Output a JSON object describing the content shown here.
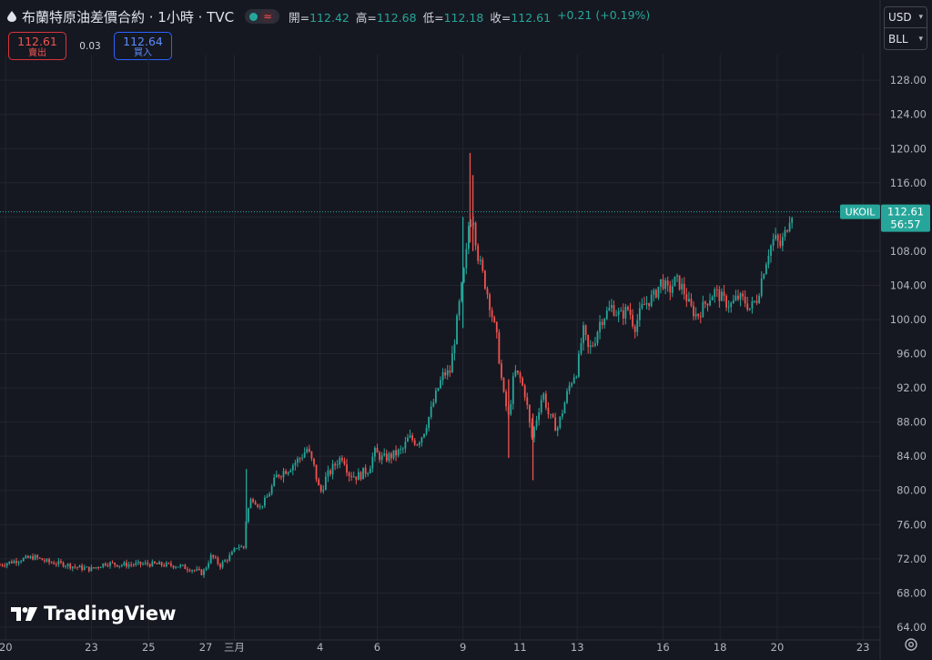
{
  "header": {
    "symbol_title": "布蘭特原油差價合約 · 1小時 · TVC",
    "status_icon": "market-open-dot",
    "wave_icon": "≈",
    "ohlc": [
      {
        "key": "開=",
        "value": "112.42"
      },
      {
        "key": "高=",
        "value": "112.68"
      },
      {
        "key": "低=",
        "value": "112.18"
      },
      {
        "key": "收=",
        "value": "112.61"
      }
    ],
    "change": "+0.21 (+0.19%)"
  },
  "trade": {
    "sell_price": "112.61",
    "sell_label": "賣出",
    "spread": "0.03",
    "buy_price": "112.64",
    "buy_label": "買入"
  },
  "units": {
    "currency": "USD",
    "unit": "BLL"
  },
  "price_tag": {
    "symbol": "UKOIL",
    "price": "112.61",
    "countdown": "56:57"
  },
  "logo_text": "TradingView",
  "colors": {
    "up": "#26a69a",
    "down": "#ef5350",
    "background": "#161821",
    "grid": "#22252f",
    "axis_text": "#b2b5be"
  },
  "chart_data": {
    "type": "candlestick",
    "y_ticks": [
      "64.00",
      "68.00",
      "72.00",
      "76.00",
      "80.00",
      "84.00",
      "88.00",
      "92.00",
      "96.00",
      "100.00",
      "104.00",
      "108.00",
      "112.00",
      "116.00",
      "120.00",
      "124.00",
      "128.00"
    ],
    "ylim": [
      62.5,
      131
    ],
    "x_ticks": [
      {
        "label": "20",
        "day": 0
      },
      {
        "label": "23",
        "day": 3
      },
      {
        "label": "25",
        "day": 5
      },
      {
        "label": "27",
        "day": 7
      },
      {
        "label": "三月",
        "day": 8
      },
      {
        "label": "4",
        "day": 11
      },
      {
        "label": "6",
        "day": 13
      },
      {
        "label": "9",
        "day": 16
      },
      {
        "label": "11",
        "day": 18
      },
      {
        "label": "13",
        "day": 20
      },
      {
        "label": "16",
        "day": 23
      },
      {
        "label": "18",
        "day": 25
      },
      {
        "label": "20",
        "day": 27
      },
      {
        "label": "23",
        "day": 30
      }
    ],
    "xlim": [
      -0.2,
      30.6
    ],
    "last_price": 112.61,
    "anchors": [
      [
        -0.2,
        71.3
      ],
      [
        0.5,
        71.9
      ],
      [
        1.0,
        72.2
      ],
      [
        1.5,
        71.6
      ],
      [
        2.0,
        71.4
      ],
      [
        2.5,
        71.0
      ],
      [
        3.0,
        70.8
      ],
      [
        3.5,
        71.5
      ],
      [
        4.0,
        71.3
      ],
      [
        5.0,
        71.4
      ],
      [
        6.0,
        71.2
      ],
      [
        6.5,
        70.8
      ],
      [
        6.9,
        70.3
      ],
      [
        7.2,
        72.4
      ],
      [
        7.5,
        71.2
      ],
      [
        7.9,
        72.5
      ],
      [
        8.1,
        73.5
      ],
      [
        8.35,
        73.3
      ],
      [
        8.42,
        77.0
      ],
      [
        8.6,
        79.2
      ],
      [
        8.9,
        78.0
      ],
      [
        9.2,
        79.5
      ],
      [
        9.5,
        81.8
      ],
      [
        9.9,
        82.6
      ],
      [
        10.3,
        83.8
      ],
      [
        10.55,
        84.9
      ],
      [
        10.8,
        82.6
      ],
      [
        11.0,
        79.6
      ],
      [
        11.2,
        81.4
      ],
      [
        11.6,
        83.4
      ],
      [
        11.8,
        84.1
      ],
      [
        12.0,
        82.0
      ],
      [
        12.3,
        81.6
      ],
      [
        12.7,
        82.5
      ],
      [
        12.9,
        84.5
      ],
      [
        13.2,
        83.7
      ],
      [
        13.6,
        84.2
      ],
      [
        13.9,
        84.8
      ],
      [
        14.1,
        86.2
      ],
      [
        14.4,
        85.6
      ],
      [
        14.6,
        86.6
      ],
      [
        14.85,
        89.0
      ],
      [
        15.1,
        91.7
      ],
      [
        15.3,
        93.5
      ],
      [
        15.55,
        93.9
      ],
      [
        15.95,
        103.6
      ],
      [
        16.1,
        107.0
      ],
      [
        16.2,
        111.0
      ],
      [
        16.35,
        112.3
      ],
      [
        16.5,
        107.8
      ],
      [
        16.7,
        105.2
      ],
      [
        16.9,
        102.5
      ],
      [
        17.05,
        100.0
      ],
      [
        17.2,
        97.5
      ],
      [
        17.4,
        91.5
      ],
      [
        17.6,
        88.5
      ],
      [
        17.8,
        94.0
      ],
      [
        18.0,
        93.1
      ],
      [
        18.2,
        91.0
      ],
      [
        18.4,
        86.0
      ],
      [
        18.6,
        88.8
      ],
      [
        18.8,
        91.5
      ],
      [
        19.0,
        88.8
      ],
      [
        19.3,
        87.2
      ],
      [
        19.5,
        89.5
      ],
      [
        19.7,
        92.0
      ],
      [
        19.9,
        93.6
      ],
      [
        20.0,
        94.0
      ],
      [
        20.2,
        98.8
      ],
      [
        20.4,
        96.3
      ],
      [
        20.6,
        97.5
      ],
      [
        20.8,
        99.8
      ],
      [
        21.2,
        101.5
      ],
      [
        21.5,
        100.4
      ],
      [
        21.8,
        101.3
      ],
      [
        22.0,
        99.1
      ],
      [
        22.3,
        101.6
      ],
      [
        22.7,
        102.8
      ],
      [
        22.95,
        104.6
      ],
      [
        23.2,
        103.2
      ],
      [
        23.45,
        104.7
      ],
      [
        23.7,
        103.6
      ],
      [
        23.95,
        101.4
      ],
      [
        24.2,
        100.4
      ],
      [
        24.5,
        102.0
      ],
      [
        24.8,
        103.3
      ],
      [
        25.0,
        102.7
      ],
      [
        25.2,
        102.0
      ],
      [
        25.4,
        101.7
      ],
      [
        25.6,
        102.6
      ],
      [
        25.85,
        102.2
      ],
      [
        26.05,
        101.3
      ],
      [
        26.3,
        102.5
      ],
      [
        26.5,
        105.5
      ],
      [
        26.7,
        108.0
      ],
      [
        26.9,
        109.6
      ],
      [
        27.1,
        108.6
      ],
      [
        27.3,
        110.3
      ],
      [
        27.45,
        112.2
      ],
      [
        27.55,
        112.61
      ]
    ],
    "spikes": [
      {
        "day": 8.42,
        "high": 82.5,
        "low": 75.6
      },
      {
        "day": 16.0,
        "high": 112.0,
        "low": 99.0
      },
      {
        "day": 16.25,
        "high": 119.5,
        "low": 109.0
      },
      {
        "day": 16.35,
        "high": 116.9,
        "low": 108.0
      },
      {
        "day": 17.6,
        "high": 93.0,
        "low": 83.8
      },
      {
        "day": 18.45,
        "high": 89.0,
        "low": 81.2
      }
    ]
  }
}
